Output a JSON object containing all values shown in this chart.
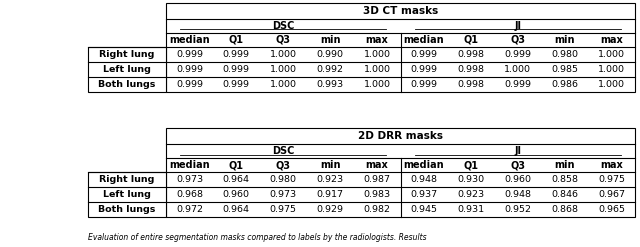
{
  "table1_title": "3D CT masks",
  "table2_title": "2D DRR masks",
  "col_groups": [
    "DSC",
    "JI"
  ],
  "sub_cols": [
    "median",
    "Q1",
    "Q3",
    "min",
    "max"
  ],
  "row_labels": [
    "Right lung",
    "Left lung",
    "Both lungs"
  ],
  "table1_data": [
    [
      "0.999",
      "0.999",
      "1.000",
      "0.990",
      "1.000",
      "0.999",
      "0.998",
      "0.999",
      "0.980",
      "1.000"
    ],
    [
      "0.999",
      "0.999",
      "1.000",
      "0.992",
      "1.000",
      "0.999",
      "0.998",
      "1.000",
      "0.985",
      "1.000"
    ],
    [
      "0.999",
      "0.999",
      "1.000",
      "0.993",
      "1.000",
      "0.999",
      "0.998",
      "0.999",
      "0.986",
      "1.000"
    ]
  ],
  "table2_data": [
    [
      "0.973",
      "0.964",
      "0.980",
      "0.923",
      "0.987",
      "0.948",
      "0.930",
      "0.960",
      "0.858",
      "0.975"
    ],
    [
      "0.968",
      "0.960",
      "0.973",
      "0.917",
      "0.983",
      "0.937",
      "0.923",
      "0.948",
      "0.846",
      "0.967"
    ],
    [
      "0.972",
      "0.964",
      "0.975",
      "0.929",
      "0.982",
      "0.945",
      "0.931",
      "0.952",
      "0.868",
      "0.965"
    ]
  ],
  "footer_text": "Evaluation of entire segmentation masks compared to labels by the radiologists. Results",
  "bg_color": "#ffffff",
  "lw": 0.8,
  "fs_title": 7.5,
  "fs_header": 7.0,
  "fs_data": 6.8,
  "fs_footer": 5.5
}
